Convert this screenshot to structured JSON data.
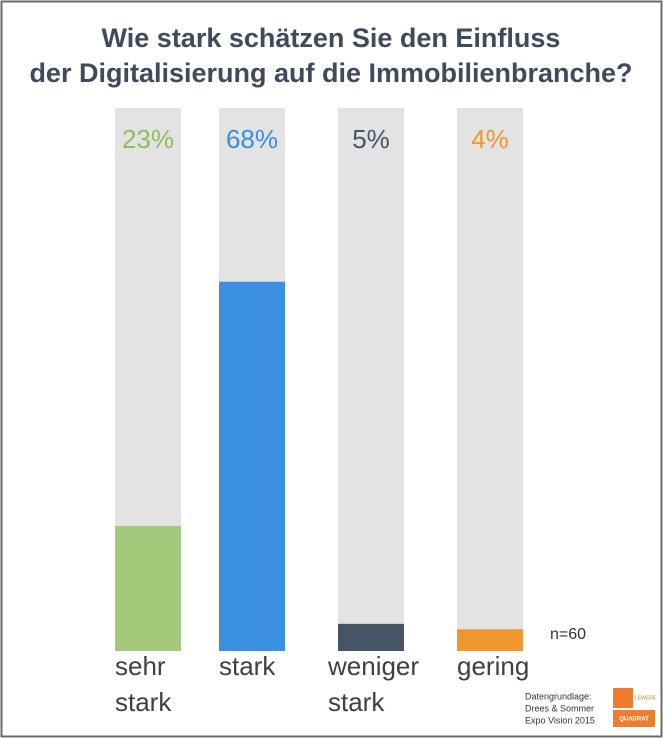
{
  "chart_data": {
    "type": "bar",
    "title_lines": [
      "Wie stark schätzen Sie den Einfluss",
      "der Digitalisierung auf die Immobilienbranche?"
    ],
    "categories": [
      "sehr stark",
      "stark",
      "weniger stark",
      "gering"
    ],
    "values": [
      23,
      68,
      5,
      4
    ],
    "value_labels": [
      "23%",
      "68%",
      "5%",
      "4%"
    ],
    "colors": [
      "#a3c97b",
      "#3a8fdf",
      "#465468",
      "#f0962e"
    ],
    "value_label_colors": [
      "#8cbf5a",
      "#3a8fdf",
      "#465468",
      "#f0962e"
    ],
    "track_color": "#e3e3e3",
    "ylim": [
      0,
      100
    ],
    "note": "n=60",
    "source_lines": [
      "Datengrundlage:",
      "Drees & Sommer",
      "Expo Vision 2015"
    ],
    "logo": {
      "top": "LEWERE",
      "bottom": "QUADRAT"
    }
  }
}
